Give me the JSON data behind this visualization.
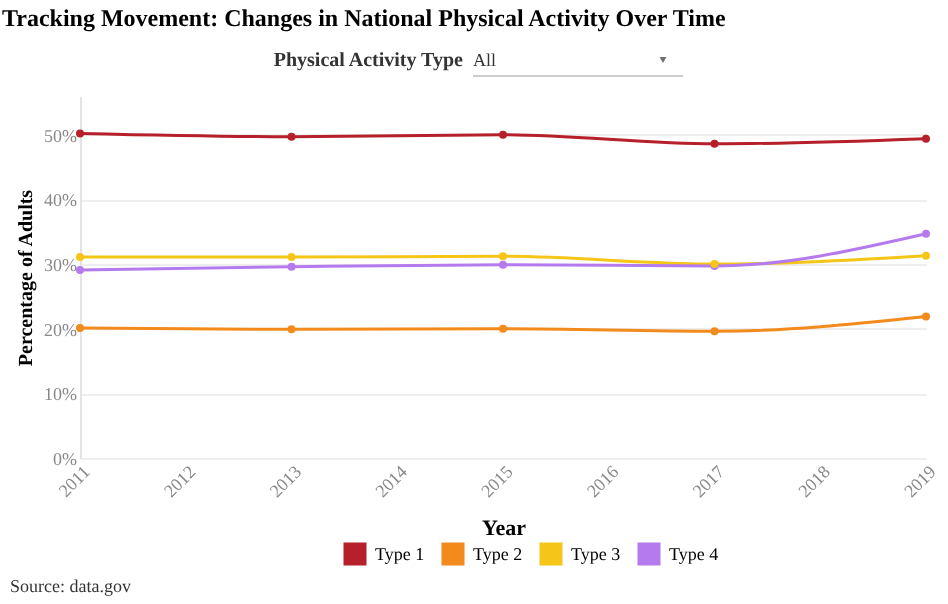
{
  "chart_data": {
    "type": "line",
    "title": "Tracking Movement: Changes in National Physical Activity Over Time",
    "xlabel": "Year",
    "ylabel": "Percentage of Adults",
    "x": [
      2011,
      2013,
      2015,
      2017,
      2019
    ],
    "series": [
      {
        "name": "Type 1",
        "color": "#b5202a",
        "values": [
          50.2,
          49.7,
          50.0,
          48.6,
          49.4
        ]
      },
      {
        "name": "Type 2",
        "color": "#f28a1c",
        "values": [
          20.1,
          19.9,
          20.0,
          19.6,
          21.9
        ]
      },
      {
        "name": "Type 3",
        "color": "#f5c518",
        "values": [
          31.1,
          31.1,
          31.2,
          30.0,
          31.3
        ]
      },
      {
        "name": "Type 4",
        "color": "#b57bee",
        "values": [
          29.1,
          29.6,
          29.9,
          29.7,
          34.7
        ]
      }
    ],
    "xlim": [
      2011,
      2019
    ],
    "xticks": [
      2011,
      2012,
      2013,
      2014,
      2015,
      2016,
      2017,
      2018,
      2019
    ],
    "ylim": [
      0,
      56
    ],
    "yticks": [
      {
        "value": 0,
        "label": "0%"
      },
      {
        "value": 10,
        "label": "10%"
      },
      {
        "value": 20,
        "label": "20%"
      },
      {
        "value": 30,
        "label": "30%"
      },
      {
        "value": 40,
        "label": "40%"
      },
      {
        "value": 50,
        "label": "50%"
      }
    ],
    "annotations": [
      "Physical Activity Type",
      "All",
      "Source: data.gov"
    ],
    "grid": "y",
    "legend": "bottom",
    "marker": "circle",
    "line_style": "solid"
  }
}
